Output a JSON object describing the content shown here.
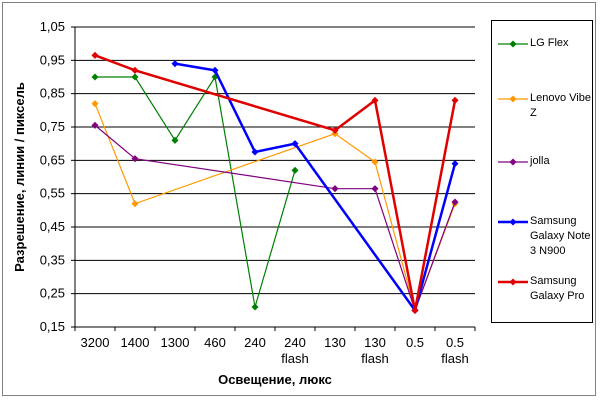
{
  "chart_data": {
    "type": "line",
    "xlabel": "Освещение, люкс",
    "ylabel": "Разрешение, линии / пиксель",
    "categories": [
      [
        "3200"
      ],
      [
        "1400"
      ],
      [
        "1300"
      ],
      [
        "460"
      ],
      [
        "240"
      ],
      [
        "240",
        "flash"
      ],
      [
        "130"
      ],
      [
        "130",
        "flash"
      ],
      [
        "0.5"
      ],
      [
        "0.5",
        "flash"
      ]
    ],
    "ylim": [
      0.15,
      1.05
    ],
    "yticks": [
      "1,05",
      "0,95",
      "0,85",
      "0,75",
      "0,65",
      "0,55",
      "0,45",
      "0,35",
      "0,25",
      "0,15"
    ],
    "grid": "horizontal",
    "legend_position": "right",
    "series": [
      {
        "name": "LG Flex",
        "color": "#008000",
        "values": [
          0.9,
          0.9,
          0.71,
          0.9,
          0.21,
          0.62,
          null,
          null,
          null,
          null
        ]
      },
      {
        "name": "Lenovo Vibe Z",
        "color": "#FF9900",
        "values": [
          0.82,
          0.52,
          null,
          null,
          null,
          null,
          0.73,
          0.645,
          0.2,
          0.52
        ]
      },
      {
        "name": "jolla",
        "color": "#800080",
        "values": [
          0.755,
          0.655,
          null,
          null,
          null,
          null,
          0.565,
          0.565,
          0.2,
          0.525
        ]
      },
      {
        "name": "Samsung Galaxy Note 3 N900",
        "color": "#0000FF",
        "values": [
          null,
          null,
          0.94,
          0.92,
          0.675,
          0.7,
          null,
          null,
          0.2,
          0.64
        ]
      },
      {
        "name": "Samsung Galaxy Pro",
        "color": "#E00000",
        "values": [
          0.965,
          0.92,
          null,
          null,
          null,
          null,
          0.74,
          0.83,
          0.2,
          0.83
        ]
      }
    ]
  }
}
